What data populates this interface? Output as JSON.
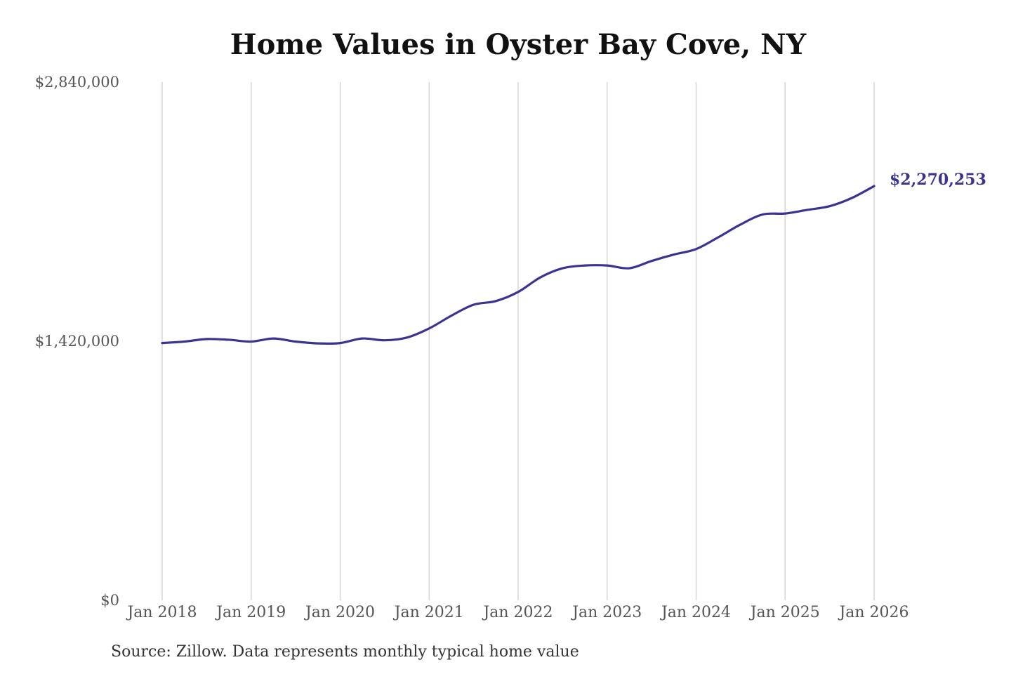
{
  "colors": {
    "line": "#3b3391",
    "grid": "#cccccc",
    "text": "#555555"
  },
  "chart_data": {
    "type": "line",
    "title": "Home Values in Oyster Bay Cove, NY",
    "source": "Source: Zillow. Data represents monthly typical home value",
    "xlabel": "",
    "ylabel": "",
    "ylim": [
      0,
      2840000
    ],
    "y_ticks": [
      {
        "value": 0,
        "label": "$0"
      },
      {
        "value": 1420000,
        "label": "$1,420,000"
      },
      {
        "value": 2840000,
        "label": "$2,840,000"
      }
    ],
    "x_range": [
      "2018-01",
      "2026-01"
    ],
    "x_ticks": [
      {
        "date": "2018-01",
        "label": "Jan 2018"
      },
      {
        "date": "2019-01",
        "label": "Jan 2019"
      },
      {
        "date": "2020-01",
        "label": "Jan 2020"
      },
      {
        "date": "2021-01",
        "label": "Jan 2021"
      },
      {
        "date": "2022-01",
        "label": "Jan 2022"
      },
      {
        "date": "2023-01",
        "label": "Jan 2023"
      },
      {
        "date": "2024-01",
        "label": "Jan 2024"
      },
      {
        "date": "2025-01",
        "label": "Jan 2025"
      },
      {
        "date": "2026-01",
        "label": "Jan 2026"
      }
    ],
    "grid": {
      "vertical": true,
      "horizontal": false
    },
    "legend": "none",
    "end_label": "$2,270,253",
    "series": [
      {
        "points": [
          [
            "2018-01",
            1410000
          ],
          [
            "2018-04",
            1418000
          ],
          [
            "2018-07",
            1432000
          ],
          [
            "2018-10",
            1428000
          ],
          [
            "2019-01",
            1418000
          ],
          [
            "2019-04",
            1435000
          ],
          [
            "2019-07",
            1418000
          ],
          [
            "2019-10",
            1408000
          ],
          [
            "2020-01",
            1410000
          ],
          [
            "2020-04",
            1435000
          ],
          [
            "2020-07",
            1425000
          ],
          [
            "2020-10",
            1440000
          ],
          [
            "2021-01",
            1490000
          ],
          [
            "2021-04",
            1560000
          ],
          [
            "2021-07",
            1620000
          ],
          [
            "2021-10",
            1640000
          ],
          [
            "2022-01",
            1690000
          ],
          [
            "2022-04",
            1770000
          ],
          [
            "2022-07",
            1820000
          ],
          [
            "2022-10",
            1835000
          ],
          [
            "2023-01",
            1835000
          ],
          [
            "2023-04",
            1820000
          ],
          [
            "2023-07",
            1860000
          ],
          [
            "2023-10",
            1895000
          ],
          [
            "2024-01",
            1925000
          ],
          [
            "2024-04",
            1990000
          ],
          [
            "2024-07",
            2060000
          ],
          [
            "2024-10",
            2115000
          ],
          [
            "2025-01",
            2120000
          ],
          [
            "2025-04",
            2140000
          ],
          [
            "2025-07",
            2160000
          ],
          [
            "2025-10",
            2205000
          ],
          [
            "2026-01",
            2270253
          ]
        ]
      }
    ]
  }
}
